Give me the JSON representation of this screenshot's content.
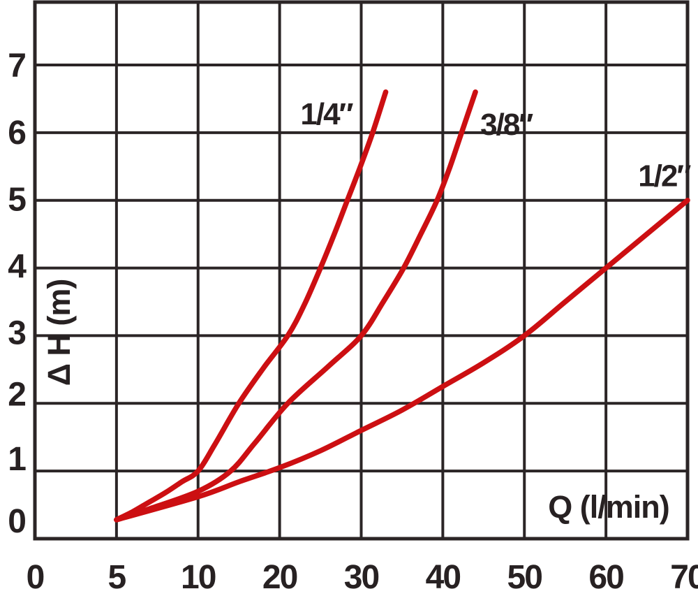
{
  "page": {
    "background_color": "#ffffff",
    "description": "Pressure-drop chart for three hose diameters"
  },
  "chart_data": {
    "type": "line",
    "title": "",
    "xlabel": "Q (l/min)",
    "ylabel": "Δ H (m)",
    "x_tick_labels": [
      "0",
      "5",
      "10",
      "20",
      "30",
      "40",
      "50",
      "60",
      "70"
    ],
    "x_tick_values": [
      0,
      5,
      10,
      20,
      30,
      40,
      50,
      60,
      70
    ],
    "x_axis_scale": "piecewise-linear: consecutive labeled ticks are equally spaced (0-5-10, then steps of 10 up to 70)",
    "y_tick_labels": [
      "0",
      "1",
      "2",
      "3",
      "4",
      "5",
      "6",
      "7"
    ],
    "y_tick_values": [
      0,
      1,
      2,
      3,
      4,
      5,
      6,
      7
    ],
    "xlim": [
      0,
      70
    ],
    "ylim": [
      0,
      7.9
    ],
    "grid": true,
    "legend_position": "labels-next-to-curves",
    "colors": {
      "curve": "#cc0f12",
      "grid": "#2b2526",
      "text": "#272122"
    },
    "series": [
      {
        "name": "1/4″",
        "label_at": [
          28.9,
          6.12
        ],
        "label_anchor": "end",
        "points": [
          [
            5,
            0.28
          ],
          [
            6,
            0.4
          ],
          [
            7,
            0.54
          ],
          [
            8,
            0.68
          ],
          [
            9,
            0.84
          ],
          [
            10,
            1.0
          ],
          [
            12,
            1.38
          ],
          [
            15,
            2.0
          ],
          [
            18,
            2.52
          ],
          [
            21,
            3.0
          ],
          [
            23,
            3.45
          ],
          [
            25,
            4.0
          ],
          [
            26.7,
            4.5
          ],
          [
            28.3,
            5.0
          ],
          [
            29.9,
            5.5
          ],
          [
            31.4,
            6.0
          ],
          [
            33,
            6.6
          ]
        ]
      },
      {
        "name": "3/8″",
        "label_at": [
          44.6,
          5.97
        ],
        "label_anchor": "start",
        "points": [
          [
            5,
            0.28
          ],
          [
            7,
            0.44
          ],
          [
            10,
            0.7
          ],
          [
            14,
            1.0
          ],
          [
            17,
            1.42
          ],
          [
            21,
            2.0
          ],
          [
            26,
            2.55
          ],
          [
            30,
            3.0
          ],
          [
            32.7,
            3.5
          ],
          [
            35.2,
            4.0
          ],
          [
            37.3,
            4.5
          ],
          [
            39.3,
            5.0
          ],
          [
            40.9,
            5.5
          ],
          [
            42.3,
            6.0
          ],
          [
            44,
            6.6
          ]
        ]
      },
      {
        "name": "1/2″",
        "label_at": [
          70.3,
          5.21
        ],
        "label_anchor": "end",
        "points": [
          [
            5,
            0.28
          ],
          [
            10,
            0.62
          ],
          [
            15,
            0.84
          ],
          [
            20,
            1.05
          ],
          [
            25,
            1.3
          ],
          [
            30,
            1.6
          ],
          [
            35,
            1.9
          ],
          [
            40,
            2.25
          ],
          [
            45,
            2.6
          ],
          [
            50,
            3.0
          ],
          [
            55,
            3.5
          ],
          [
            60,
            4.0
          ],
          [
            65,
            4.5
          ],
          [
            70,
            5.0
          ]
        ]
      }
    ]
  }
}
